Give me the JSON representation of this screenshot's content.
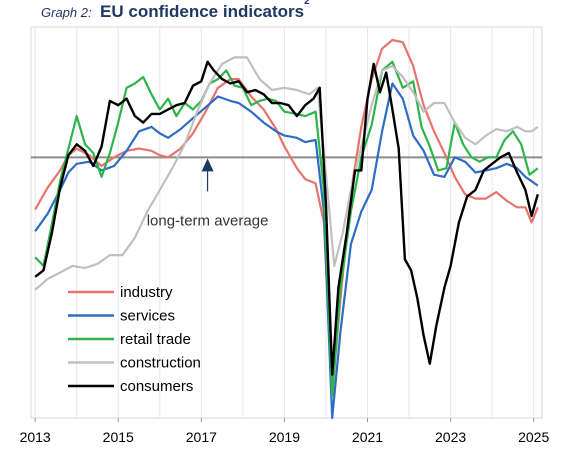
{
  "header": {
    "graph_label": "Graph 2:",
    "title": "EU confidence indicators",
    "footnote": "2"
  },
  "chart_data": {
    "type": "line",
    "title": "EU confidence indicators",
    "xlabel": "",
    "ylabel": "",
    "xlim": [
      2012.9,
      2025.2
    ],
    "ylim": [
      -12.0,
      6.0
    ],
    "x_ticks": [
      "2013",
      "2015",
      "2017",
      "2019",
      "2021",
      "2023",
      "2025"
    ],
    "x_tick_values": [
      2013,
      2015,
      2017,
      2019,
      2021,
      2023,
      2025
    ],
    "baseline": {
      "value": 0,
      "color": "#8c8c8c"
    },
    "annotation": {
      "text": "long-term average",
      "arrow_x": 2017.15,
      "arrow_y": 0
    },
    "grid": "vertical lines at year boundaries",
    "legend": {
      "placement": "bottom-left",
      "entries": [
        "industry",
        "services",
        "retail trade",
        "construction",
        "consumers"
      ]
    },
    "series": [
      {
        "name": "industry",
        "color": "#e8736c",
        "points": [
          [
            2013.0,
            -2.4
          ],
          [
            2013.3,
            -1.4
          ],
          [
            2013.6,
            -0.6
          ],
          [
            2013.8,
            0.1
          ],
          [
            2014.0,
            0.4
          ],
          [
            2014.3,
            0.1
          ],
          [
            2014.6,
            -0.4
          ],
          [
            2014.9,
            0.0
          ],
          [
            2015.2,
            0.3
          ],
          [
            2015.5,
            0.4
          ],
          [
            2015.8,
            0.3
          ],
          [
            2016.0,
            0.1
          ],
          [
            2016.2,
            0.0
          ],
          [
            2016.5,
            0.4
          ],
          [
            2016.8,
            1.1
          ],
          [
            2017.1,
            2.1
          ],
          [
            2017.4,
            3.2
          ],
          [
            2017.7,
            3.6
          ],
          [
            2017.9,
            3.6
          ],
          [
            2018.2,
            2.8
          ],
          [
            2018.5,
            2.2
          ],
          [
            2018.8,
            1.3
          ],
          [
            2019.0,
            0.5
          ],
          [
            2019.3,
            -0.5
          ],
          [
            2019.5,
            -1.0
          ],
          [
            2019.75,
            -1.2
          ],
          [
            2019.95,
            -3.0
          ],
          [
            2020.15,
            -10.9
          ],
          [
            2020.35,
            -6.5
          ],
          [
            2020.6,
            -1.6
          ],
          [
            2020.85,
            1.4
          ],
          [
            2021.1,
            3.6
          ],
          [
            2021.35,
            5.0
          ],
          [
            2021.6,
            5.4
          ],
          [
            2021.85,
            5.3
          ],
          [
            2022.1,
            4.2
          ],
          [
            2022.35,
            2.4
          ],
          [
            2022.6,
            1.2
          ],
          [
            2022.85,
            0.2
          ],
          [
            2023.1,
            -0.9
          ],
          [
            2023.35,
            -1.7
          ],
          [
            2023.6,
            -1.9
          ],
          [
            2023.85,
            -1.9
          ],
          [
            2024.1,
            -1.6
          ],
          [
            2024.35,
            -2.0
          ],
          [
            2024.6,
            -2.3
          ],
          [
            2024.8,
            -2.3
          ],
          [
            2024.95,
            -3.0
          ],
          [
            2025.1,
            -2.3
          ]
        ]
      },
      {
        "name": "services",
        "color": "#2e6dc4",
        "points": [
          [
            2013.0,
            -3.4
          ],
          [
            2013.3,
            -2.6
          ],
          [
            2013.6,
            -1.5
          ],
          [
            2013.8,
            -0.7
          ],
          [
            2014.0,
            -0.3
          ],
          [
            2014.3,
            -0.2
          ],
          [
            2014.6,
            -0.6
          ],
          [
            2014.9,
            -0.4
          ],
          [
            2015.2,
            0.3
          ],
          [
            2015.5,
            1.2
          ],
          [
            2015.8,
            1.4
          ],
          [
            2016.0,
            1.1
          ],
          [
            2016.2,
            0.9
          ],
          [
            2016.5,
            1.3
          ],
          [
            2016.8,
            1.8
          ],
          [
            2017.1,
            2.3
          ],
          [
            2017.4,
            2.8
          ],
          [
            2017.7,
            2.6
          ],
          [
            2017.9,
            2.5
          ],
          [
            2018.2,
            2.1
          ],
          [
            2018.5,
            1.6
          ],
          [
            2018.8,
            1.2
          ],
          [
            2019.0,
            1.0
          ],
          [
            2019.3,
            0.9
          ],
          [
            2019.5,
            0.7
          ],
          [
            2019.75,
            0.8
          ],
          [
            2019.95,
            -2.5
          ],
          [
            2020.15,
            -12.0
          ],
          [
            2020.35,
            -8.0
          ],
          [
            2020.6,
            -4.0
          ],
          [
            2020.85,
            -2.5
          ],
          [
            2021.1,
            -1.5
          ],
          [
            2021.35,
            1.2
          ],
          [
            2021.6,
            3.4
          ],
          [
            2021.85,
            2.7
          ],
          [
            2022.1,
            1.0
          ],
          [
            2022.35,
            0.3
          ],
          [
            2022.6,
            -0.8
          ],
          [
            2022.85,
            -0.9
          ],
          [
            2023.1,
            0.0
          ],
          [
            2023.35,
            -0.2
          ],
          [
            2023.6,
            -0.7
          ],
          [
            2023.85,
            -0.6
          ],
          [
            2024.1,
            -0.5
          ],
          [
            2024.35,
            -0.3
          ],
          [
            2024.6,
            -0.5
          ],
          [
            2024.8,
            -0.9
          ],
          [
            2024.95,
            -1.1
          ],
          [
            2025.1,
            -1.3
          ]
        ]
      },
      {
        "name": "retail trade",
        "color": "#2fb44a",
        "points": [
          [
            2013.0,
            -4.6
          ],
          [
            2013.2,
            -5.0
          ],
          [
            2013.4,
            -3.1
          ],
          [
            2013.6,
            -1.1
          ],
          [
            2013.8,
            0.4
          ],
          [
            2014.0,
            1.9
          ],
          [
            2014.2,
            0.6
          ],
          [
            2014.4,
            0.2
          ],
          [
            2014.6,
            -0.9
          ],
          [
            2014.8,
            0.2
          ],
          [
            2015.0,
            1.6
          ],
          [
            2015.2,
            3.2
          ],
          [
            2015.4,
            3.4
          ],
          [
            2015.6,
            3.7
          ],
          [
            2015.8,
            2.9
          ],
          [
            2016.0,
            2.2
          ],
          [
            2016.2,
            2.7
          ],
          [
            2016.4,
            1.9
          ],
          [
            2016.6,
            2.5
          ],
          [
            2016.8,
            2.2
          ],
          [
            2017.0,
            2.6
          ],
          [
            2017.2,
            3.4
          ],
          [
            2017.4,
            3.6
          ],
          [
            2017.6,
            4.0
          ],
          [
            2017.8,
            3.3
          ],
          [
            2018.0,
            3.2
          ],
          [
            2018.2,
            2.4
          ],
          [
            2018.4,
            2.6
          ],
          [
            2018.6,
            2.7
          ],
          [
            2018.8,
            2.6
          ],
          [
            2019.0,
            2.1
          ],
          [
            2019.3,
            2.0
          ],
          [
            2019.5,
            1.9
          ],
          [
            2019.75,
            2.1
          ],
          [
            2019.95,
            -1.5
          ],
          [
            2020.15,
            -11.0
          ],
          [
            2020.35,
            -6.0
          ],
          [
            2020.6,
            -2.5
          ],
          [
            2020.85,
            0.0
          ],
          [
            2021.1,
            1.5
          ],
          [
            2021.35,
            4.0
          ],
          [
            2021.6,
            4.4
          ],
          [
            2021.85,
            3.2
          ],
          [
            2022.1,
            3.5
          ],
          [
            2022.3,
            1.4
          ],
          [
            2022.5,
            0.5
          ],
          [
            2022.7,
            -0.6
          ],
          [
            2022.9,
            -0.5
          ],
          [
            2023.1,
            1.6
          ],
          [
            2023.3,
            0.6
          ],
          [
            2023.5,
            0.0
          ],
          [
            2023.7,
            -0.2
          ],
          [
            2023.9,
            0.0
          ],
          [
            2024.1,
            0.0
          ],
          [
            2024.3,
            0.8
          ],
          [
            2024.5,
            1.2
          ],
          [
            2024.7,
            0.6
          ],
          [
            2024.9,
            -0.8
          ],
          [
            2025.1,
            -0.5
          ]
        ]
      },
      {
        "name": "construction",
        "color": "#c0c0c0",
        "points": [
          [
            2013.0,
            -6.1
          ],
          [
            2013.3,
            -5.6
          ],
          [
            2013.6,
            -5.3
          ],
          [
            2013.9,
            -5.0
          ],
          [
            2014.2,
            -5.1
          ],
          [
            2014.5,
            -4.9
          ],
          [
            2014.8,
            -4.5
          ],
          [
            2015.1,
            -4.5
          ],
          [
            2015.4,
            -3.7
          ],
          [
            2015.7,
            -2.5
          ],
          [
            2016.0,
            -1.5
          ],
          [
            2016.3,
            -0.5
          ],
          [
            2016.6,
            0.6
          ],
          [
            2016.9,
            2.1
          ],
          [
            2017.2,
            3.4
          ],
          [
            2017.5,
            4.3
          ],
          [
            2017.8,
            4.6
          ],
          [
            2018.1,
            4.6
          ],
          [
            2018.4,
            3.6
          ],
          [
            2018.7,
            3.1
          ],
          [
            2019.0,
            3.2
          ],
          [
            2019.3,
            3.1
          ],
          [
            2019.6,
            2.9
          ],
          [
            2019.8,
            3.2
          ],
          [
            2020.0,
            -0.8
          ],
          [
            2020.2,
            -5.0
          ],
          [
            2020.4,
            -3.5
          ],
          [
            2020.6,
            -1.5
          ],
          [
            2020.85,
            0.5
          ],
          [
            2021.1,
            2.4
          ],
          [
            2021.35,
            4.0
          ],
          [
            2021.6,
            4.2
          ],
          [
            2021.85,
            3.7
          ],
          [
            2022.1,
            3.0
          ],
          [
            2022.35,
            2.1
          ],
          [
            2022.6,
            2.5
          ],
          [
            2022.85,
            2.5
          ],
          [
            2023.1,
            1.6
          ],
          [
            2023.35,
            0.9
          ],
          [
            2023.6,
            0.6
          ],
          [
            2023.85,
            1.0
          ],
          [
            2024.1,
            1.3
          ],
          [
            2024.35,
            1.2
          ],
          [
            2024.6,
            1.4
          ],
          [
            2024.8,
            1.2
          ],
          [
            2024.95,
            1.2
          ],
          [
            2025.1,
            1.4
          ]
        ]
      },
      {
        "name": "consumers",
        "color": "#000000",
        "points": [
          [
            2013.0,
            -5.5
          ],
          [
            2013.2,
            -5.2
          ],
          [
            2013.4,
            -3.5
          ],
          [
            2013.6,
            -1.4
          ],
          [
            2013.8,
            0.1
          ],
          [
            2014.0,
            0.6
          ],
          [
            2014.2,
            0.3
          ],
          [
            2014.4,
            -0.4
          ],
          [
            2014.6,
            0.5
          ],
          [
            2014.8,
            2.6
          ],
          [
            2015.0,
            2.4
          ],
          [
            2015.2,
            2.7
          ],
          [
            2015.4,
            1.9
          ],
          [
            2015.6,
            1.6
          ],
          [
            2015.8,
            2.0
          ],
          [
            2016.0,
            2.0
          ],
          [
            2016.2,
            2.2
          ],
          [
            2016.4,
            2.4
          ],
          [
            2016.6,
            2.5
          ],
          [
            2016.8,
            3.3
          ],
          [
            2017.0,
            3.5
          ],
          [
            2017.15,
            4.4
          ],
          [
            2017.3,
            4.0
          ],
          [
            2017.5,
            3.6
          ],
          [
            2017.7,
            3.4
          ],
          [
            2017.9,
            3.5
          ],
          [
            2018.1,
            3.0
          ],
          [
            2018.3,
            3.1
          ],
          [
            2018.5,
            2.9
          ],
          [
            2018.7,
            2.5
          ],
          [
            2018.9,
            2.5
          ],
          [
            2019.1,
            2.4
          ],
          [
            2019.3,
            1.9
          ],
          [
            2019.5,
            2.4
          ],
          [
            2019.7,
            2.7
          ],
          [
            2019.85,
            3.2
          ],
          [
            2020.0,
            -2.2
          ],
          [
            2020.15,
            -10.0
          ],
          [
            2020.3,
            -6.0
          ],
          [
            2020.5,
            -3.5
          ],
          [
            2020.7,
            -0.6
          ],
          [
            2020.85,
            -0.6
          ],
          [
            2021.0,
            2.7
          ],
          [
            2021.15,
            4.3
          ],
          [
            2021.3,
            3.0
          ],
          [
            2021.45,
            3.9
          ],
          [
            2021.6,
            2.2
          ],
          [
            2021.75,
            0.4
          ],
          [
            2021.9,
            -4.7
          ],
          [
            2022.05,
            -5.2
          ],
          [
            2022.2,
            -6.5
          ],
          [
            2022.35,
            -8.2
          ],
          [
            2022.5,
            -9.5
          ],
          [
            2022.65,
            -7.8
          ],
          [
            2022.85,
            -6.0
          ],
          [
            2023.0,
            -5.0
          ],
          [
            2023.2,
            -3.0
          ],
          [
            2023.4,
            -1.8
          ],
          [
            2023.6,
            -1.5
          ],
          [
            2023.8,
            -0.6
          ],
          [
            2024.0,
            -0.3
          ],
          [
            2024.2,
            0.0
          ],
          [
            2024.4,
            0.2
          ],
          [
            2024.6,
            -0.7
          ],
          [
            2024.8,
            -1.5
          ],
          [
            2024.95,
            -2.7
          ],
          [
            2025.1,
            -1.7
          ]
        ]
      }
    ]
  }
}
